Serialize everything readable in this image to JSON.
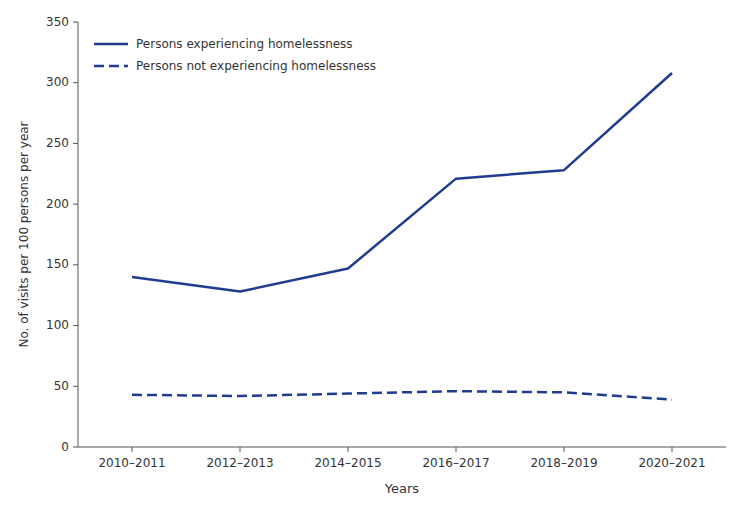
{
  "chart_data": {
    "type": "line",
    "categories": [
      "2010–2011",
      "2012–2013",
      "2014–2015",
      "2016–2017",
      "2018–2019",
      "2020–2021"
    ],
    "series": [
      {
        "name": "Persons experiencing homelessness",
        "color": "#1f3c8f",
        "line_style": "solid",
        "values": [
          140,
          128,
          147,
          221,
          228,
          308
        ]
      },
      {
        "name": "Persons not experiencing homelessness",
        "color": "#1f3c8f",
        "line_style": "dashed",
        "values": [
          43,
          42,
          44,
          46,
          45,
          39
        ]
      }
    ],
    "xlabel": "Years",
    "ylabel": "No. of visits per 100 persons per year",
    "ylim": [
      0,
      350
    ],
    "yticks": [
      0,
      50,
      100,
      150,
      200,
      250,
      300,
      350
    ],
    "grid": false,
    "legend": "upper left"
  }
}
